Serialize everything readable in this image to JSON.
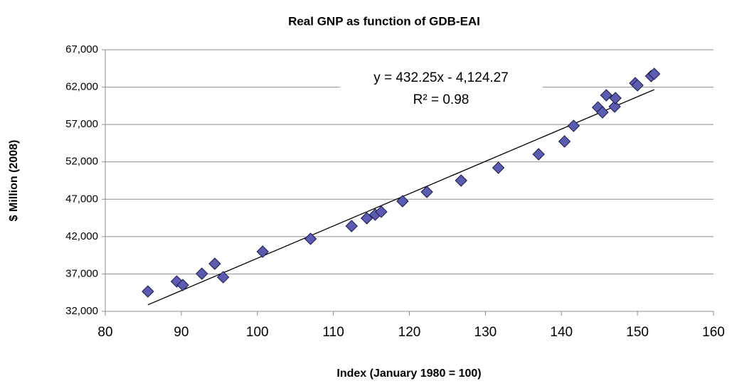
{
  "chart_data": {
    "type": "scatter",
    "title": "Real GNP as function of GDB-EAI",
    "x_label": "Index (January 1980 = 100)",
    "y_label": "$ Million (2008)",
    "series": [
      {
        "color": "#5b5bb0",
        "x": [
          85.6,
          89.4,
          90.2,
          92.7,
          94.4,
          95.5,
          100.7,
          107.0,
          112.4,
          114.4,
          115.5,
          116.3,
          119.1,
          122.3,
          126.8,
          131.7,
          137.0,
          140.4,
          141.6,
          144.8,
          145.4,
          145.9,
          147.0,
          147.1,
          149.7,
          150.0,
          151.8,
          152.2
        ],
        "values": [
          34660,
          36000,
          35520,
          37040,
          38370,
          36570,
          39990,
          41700,
          43410,
          44460,
          44940,
          45320,
          46740,
          47980,
          49500,
          51210,
          53020,
          54730,
          56820,
          59290,
          58630,
          60910,
          59390,
          60530,
          62530,
          62240,
          63480,
          63770
        ]
      }
    ],
    "trendline": {
      "slope": 432.25,
      "intercept": -4124.27,
      "label": "y = 432.25x - 4,124.27",
      "r2_label": "R² = 0.98"
    },
    "xlim": [
      80,
      160
    ],
    "xticks": [
      80,
      90,
      100,
      110,
      120,
      130,
      140,
      150,
      160
    ],
    "ylim": [
      32000,
      67000
    ],
    "yticks": [
      {
        "value": 32000,
        "label": "32,000"
      },
      {
        "value": 37000,
        "label": "37,000"
      },
      {
        "value": 42000,
        "label": "42,000"
      },
      {
        "value": 47000,
        "label": "47,000"
      },
      {
        "value": 52000,
        "label": "52,000"
      },
      {
        "value": 57000,
        "label": "57,000"
      },
      {
        "value": 62000,
        "label": "62,000"
      },
      {
        "value": 67000,
        "label": "67,000"
      }
    ],
    "grid": true
  }
}
